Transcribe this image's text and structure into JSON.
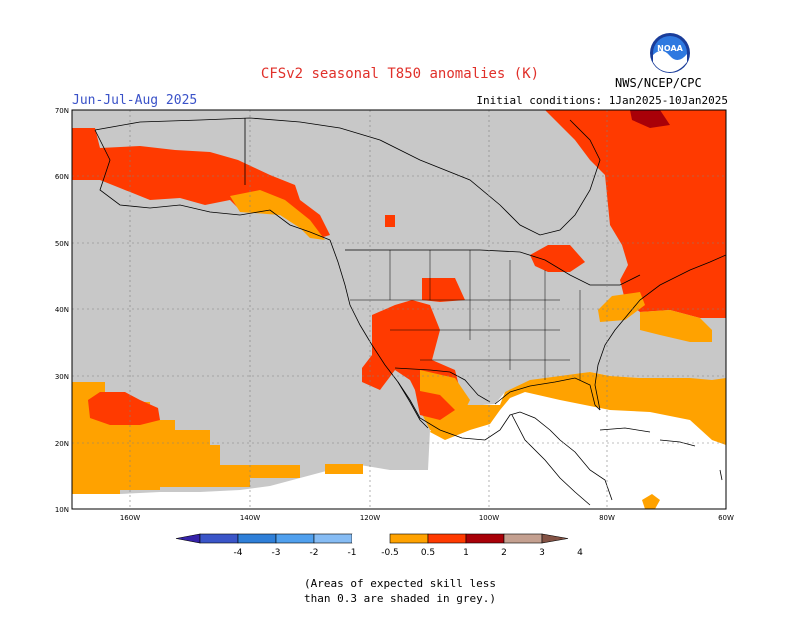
{
  "title": "CFSv2 seasonal T850 anomalies (K)",
  "season": "Jun-Jul-Aug 2025",
  "initial_conditions": "Initial conditions: 1Jan2025-10Jan2025",
  "agency": "NWS/NCEP/CPC",
  "logo_text": "NOAA",
  "lat_labels": [
    "70N",
    "60N",
    "50N",
    "40N",
    "30N",
    "20N",
    "10N"
  ],
  "lon_labels": [
    "160W",
    "140W",
    "120W",
    "100W",
    "80W",
    "60W"
  ],
  "colorbar": {
    "labels": [
      "-4",
      "-3",
      "-2",
      "-1",
      "-0.5",
      "0.5",
      "1",
      "2",
      "3",
      "4"
    ],
    "colors": [
      "#3522a8",
      "#3a55c8",
      "#2f7fd8",
      "#50a0ee",
      "#86bcf4",
      "#ffffff",
      "#ffa200",
      "#ff3a00",
      "#a80008",
      "#c4a090",
      "#835244"
    ]
  },
  "skill_note": [
    "(Areas of expected skill less",
    "than 0.3 are shaded in grey.)"
  ],
  "legend_colors": {
    "low_skill": "#c8c8c8",
    "anom_0_5_1": "#ffa200",
    "anom_1_2": "#ff3a00",
    "anom_2_3": "#a80008"
  }
}
